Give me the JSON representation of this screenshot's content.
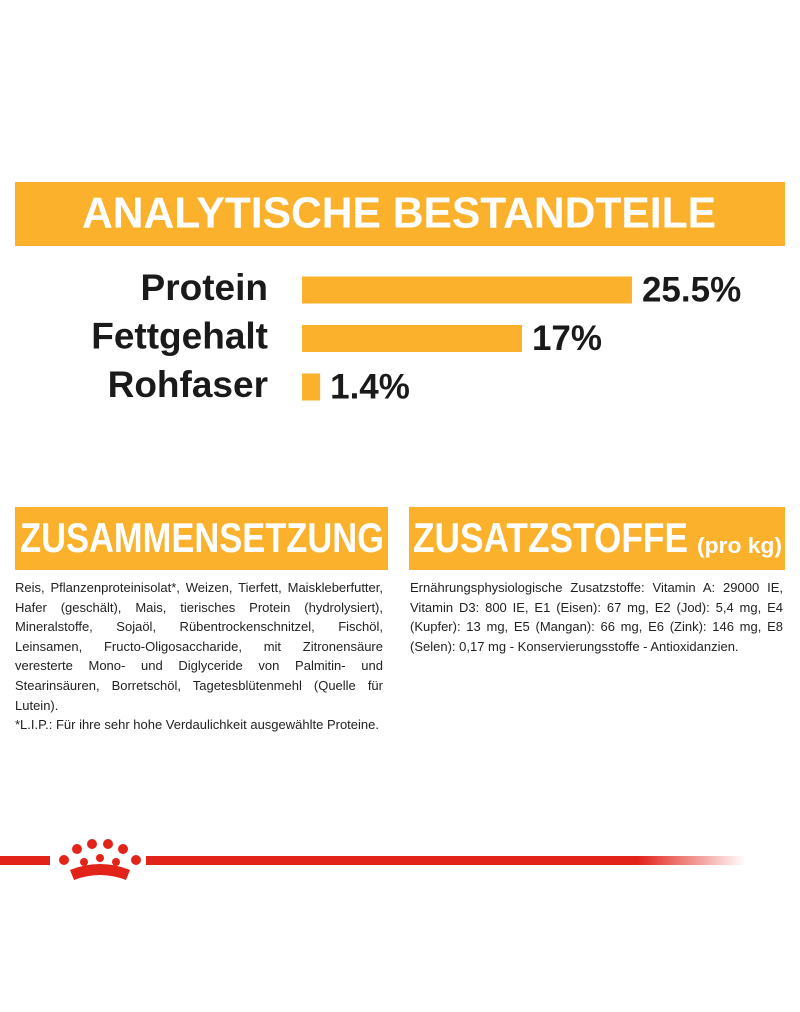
{
  "chart_data": {
    "type": "bar",
    "orientation": "horizontal",
    "title": "ANALYTISCHE BESTANDTEILE",
    "categories": [
      "Protein",
      "Fettgehalt",
      "Rohfaser"
    ],
    "values": [
      25.5,
      17,
      1.4
    ],
    "value_labels": [
      "25.5%",
      "17%",
      "1.4%"
    ],
    "color": "#fbb12b"
  },
  "composition": {
    "title": "ZUSAMMENSETZUNG",
    "text": [
      "Reis, Pflanzenproteinisolat*, Weizen, Tierfett, Maiskleberfutter, Hafer (geschält), Mais, tierisches Protein (hydrolysiert), Mineralstoffe, Sojaöl, Rübentrockenschnitzel, Fischöl, Leinsamen, Fructo-Oligosaccharide, mit Zitronensäure veresterte Mono- und Diglyceride von Palmitin- und Stearinsäuren, Borretschöl, Tagetesblütenmehl (Quelle für Lutein).",
      "*L.I.P.: Für ihre sehr hohe Verdaulichkeit ausgewählte Proteine."
    ]
  },
  "additives": {
    "title": "ZUSATZSTOFFE",
    "subtitle": "(pro kg)",
    "text": [
      "Ernährungsphysiologische Zusatzstoffe: Vitamin A: 29000 IE, Vitamin D3: 800 IE, E1 (Eisen): 67 mg, E2 (Jod): 5,4 mg, E4 (Kupfer): 13 mg, E5 (Mangan): 66 mg, E6 (Zink): 146 mg, E8 (Selen): 0,17 mg - Konservierungsstoffe - Antioxidanzien."
    ]
  }
}
